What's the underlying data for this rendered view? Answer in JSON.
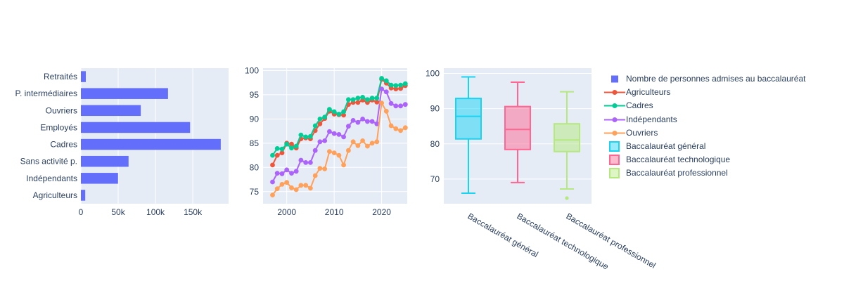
{
  "figure": {
    "bg": "#ffffff",
    "plot_bg": "#E5ECF6",
    "grid_color": "#ffffff",
    "font_color": "#2a3f5f"
  },
  "legend": {
    "items": [
      {
        "label": "Nombre de personnes admises au baccalauréat",
        "marker": "square",
        "color": "#636EFA"
      },
      {
        "label": "Agriculteurs",
        "marker": "line",
        "color": "#EF553B"
      },
      {
        "label": "Cadres",
        "marker": "line",
        "color": "#00CC96"
      },
      {
        "label": "Indépendants",
        "marker": "line",
        "color": "#AB63FA"
      },
      {
        "label": "Ouvriers",
        "marker": "line",
        "color": "#FFA15A"
      },
      {
        "label": "Baccalauréat général",
        "marker": "box",
        "color": "#19D3F3"
      },
      {
        "label": "Baccalauréat technologique",
        "marker": "box",
        "color": "#FF6692"
      },
      {
        "label": "Baccalauréat professionnel",
        "marker": "box",
        "color": "#B6E880"
      }
    ]
  },
  "chart_data": [
    {
      "type": "bar",
      "orientation": "horizontal",
      "legend_label": "Nombre de personnes admises au baccalauréat",
      "color": "#636EFA",
      "categories": [
        "Retraités",
        "P. intermédiaires",
        "Ouvriers",
        "Employés",
        "Cadres",
        "Sans activité p.",
        "Indépendants",
        "Agriculteurs"
      ],
      "values": [
        6600,
        116800,
        80300,
        146400,
        187500,
        63900,
        49800,
        5800
      ],
      "xlim": [
        0,
        198000
      ],
      "xticks": [
        {
          "v": 0,
          "label": "0"
        },
        {
          "v": 50000,
          "label": "50k"
        },
        {
          "v": 100000,
          "label": "100k"
        },
        {
          "v": 150000,
          "label": "150k"
        }
      ],
      "grid": true
    },
    {
      "type": "line",
      "x": [
        1997,
        1998,
        1999,
        2000,
        2001,
        2002,
        2003,
        2004,
        2005,
        2006,
        2007,
        2008,
        2009,
        2010,
        2011,
        2012,
        2013,
        2014,
        2015,
        2016,
        2017,
        2018,
        2019,
        2020,
        2021,
        2022,
        2023,
        2024,
        2025
      ],
      "xlim": [
        1995.0,
        2025.4
      ],
      "ylim": [
        72.5,
        100.5
      ],
      "xticks": [
        2000,
        2010,
        2020
      ],
      "yticks": [
        75,
        80,
        85,
        90,
        95,
        100
      ],
      "grid": true,
      "series": [
        {
          "name": "Agriculteurs",
          "color": "#EF553B",
          "values": [
            80.5,
            82.5,
            83.0,
            85.0,
            84.8,
            84.0,
            85.9,
            86.1,
            85.9,
            87.6,
            89.0,
            90.1,
            91.6,
            91.0,
            90.9,
            90.8,
            93.0,
            93.4,
            93.4,
            93.9,
            93.4,
            93.9,
            93.5,
            98.2,
            97.4,
            96.4,
            96.2,
            96.3,
            96.9
          ]
        },
        {
          "name": "Cadres",
          "color": "#00CC96",
          "values": [
            82.5,
            83.9,
            83.8,
            84.8,
            84.0,
            84.4,
            86.7,
            86.3,
            86.4,
            88.6,
            90.0,
            90.4,
            92.0,
            91.5,
            91.0,
            91.5,
            94.0,
            94.0,
            94.3,
            94.5,
            94.0,
            94.3,
            94.3,
            98.4,
            97.9,
            97.0,
            96.9,
            97.0,
            97.3
          ]
        },
        {
          "name": "Indépendants",
          "color": "#AB63FA",
          "values": [
            77.0,
            78.8,
            78.7,
            79.5,
            78.8,
            79.2,
            81.5,
            81.0,
            81.0,
            83.5,
            85.3,
            85.5,
            87.4,
            87.0,
            86.8,
            86.3,
            88.5,
            89.7,
            89.3,
            90.0,
            89.5,
            89.5,
            89.0,
            96.2,
            95.6,
            93.2,
            92.7,
            92.7,
            93.0
          ]
        },
        {
          "name": "Ouvriers",
          "color": "#FFA15A",
          "values": [
            74.3,
            75.6,
            76.5,
            76.9,
            75.8,
            75.4,
            76.3,
            76.3,
            75.7,
            78.3,
            79.8,
            79.7,
            83.3,
            83.0,
            82.5,
            80.5,
            83.5,
            85.3,
            84.5,
            85.5,
            84.4,
            85.0,
            85.3,
            93.3,
            91.6,
            88.6,
            88.0,
            87.6,
            88.2
          ]
        }
      ]
    },
    {
      "type": "box",
      "ylim": [
        63.0,
        101.5
      ],
      "yticks": [
        70,
        80,
        90,
        100
      ],
      "grid": true,
      "boxes": [
        {
          "name": "Baccalauréat général",
          "color": "#19D3F3",
          "min": 66.0,
          "q1": 81.4,
          "median": 87.8,
          "q3": 92.9,
          "max": 99.0,
          "outliers": []
        },
        {
          "name": "Baccalauréat technologique",
          "color": "#FF6692",
          "min": 69.0,
          "q1": 78.4,
          "median": 84.1,
          "q3": 90.6,
          "max": 97.5,
          "outliers": []
        },
        {
          "name": "Baccalauréat professionnel",
          "color": "#B6E880",
          "min": 67.2,
          "q1": 77.8,
          "median": 81.1,
          "q3": 85.7,
          "max": 94.8,
          "outliers": [
            64.6
          ]
        }
      ]
    }
  ]
}
